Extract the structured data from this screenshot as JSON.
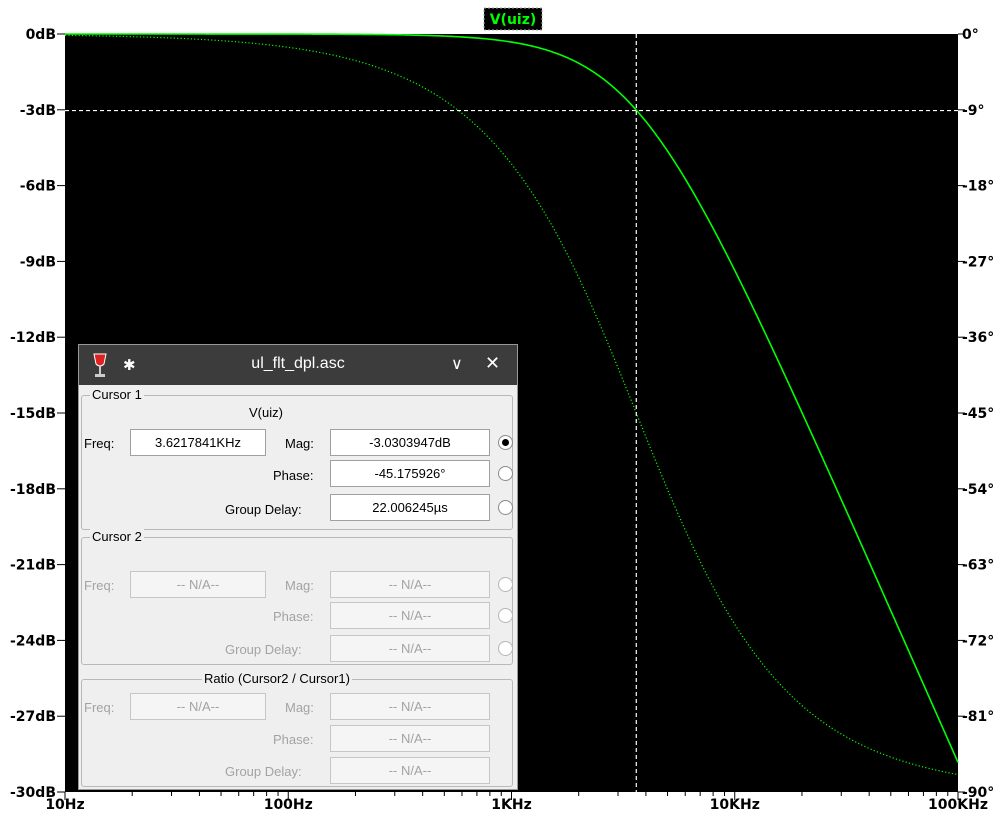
{
  "chart_data": {
    "type": "line",
    "trace_label": "V(uiz)",
    "x_ticks": [
      "10Hz",
      "100Hz",
      "1KHz",
      "10KHz",
      "100KHz"
    ],
    "x_tick_values": [
      10,
      100,
      1000,
      10000,
      100000
    ],
    "x_scale": "log",
    "xlim": [
      10,
      100000
    ],
    "y_left_ticks": [
      "0dB",
      "-3dB",
      "-6dB",
      "-9dB",
      "-12dB",
      "-15dB",
      "-18dB",
      "-21dB",
      "-24dB",
      "-27dB",
      "-30dB"
    ],
    "y_left_values": [
      0,
      -3,
      -6,
      -9,
      -12,
      -15,
      -18,
      -21,
      -24,
      -27,
      -30
    ],
    "ylim_left": [
      -30,
      0
    ],
    "y_right_ticks": [
      "0°",
      "-9°",
      "-18°",
      "-27°",
      "-36°",
      "-45°",
      "-54°",
      "-63°",
      "-72°",
      "-81°",
      "-90°"
    ],
    "y_right_values": [
      0,
      -9,
      -18,
      -27,
      -36,
      -45,
      -54,
      -63,
      -72,
      -81,
      -90
    ],
    "ylim_right": [
      -90,
      0
    ],
    "series": [
      {
        "name": "magnitude",
        "axis": "left",
        "style": "solid",
        "cutoff_hz": 3621.7841
      },
      {
        "name": "phase",
        "axis": "right",
        "style": "dotted",
        "cutoff_hz": 3621.7841
      }
    ],
    "cursor": {
      "x": 3621.7841,
      "y": -3.0303947
    },
    "colors": {
      "background": "#000000",
      "trace": "#00ff00",
      "cursor": "#ffffff",
      "axes": "#000000"
    }
  },
  "dialog": {
    "title": "ul_flt_dpl.asc",
    "cursor1": {
      "title": "Cursor 1",
      "trace": "V(uiz)",
      "freq_label": "Freq:",
      "freq": "3.6217841KHz",
      "mag_label": "Mag:",
      "mag": "-3.0303947dB",
      "phase_label": "Phase:",
      "phase": "-45.175926°",
      "gd_label": "Group Delay:",
      "gd": "22.006245µs"
    },
    "cursor2": {
      "title": "Cursor 2",
      "freq_label": "Freq:",
      "freq": "-- N/A--",
      "mag_label": "Mag:",
      "mag": "-- N/A--",
      "phase_label": "Phase:",
      "phase": "-- N/A--",
      "gd_label": "Group Delay:",
      "gd": "-- N/A--"
    },
    "ratio": {
      "title": "Ratio (Cursor2 / Cursor1)",
      "freq_label": "Freq:",
      "freq": "-- N/A--",
      "mag_label": "Mag:",
      "mag": "-- N/A--",
      "phase_label": "Phase:",
      "phase": "-- N/A--",
      "gd_label": "Group Delay:",
      "gd": "-- N/A--"
    }
  }
}
